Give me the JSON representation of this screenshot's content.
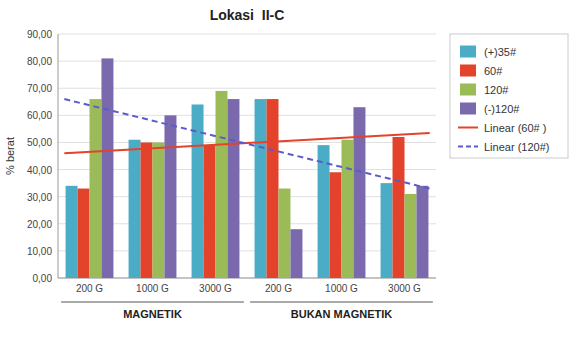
{
  "chart_data": {
    "type": "bar",
    "title": "Lokasi  II-C",
    "ylabel": "% berat",
    "categories": [
      "200 G",
      "1000 G",
      "3000 G",
      "200 G",
      "1000 G",
      "3000 G"
    ],
    "annotations": [
      "MAGNETIK",
      "BUKAN MAGNETIK"
    ],
    "series": [
      {
        "name": "(+)35#",
        "color": "#4BACC6",
        "values": [
          34,
          51,
          64,
          66,
          49,
          35
        ]
      },
      {
        "name": "60#",
        "color": "#E2432A",
        "values": [
          33,
          50,
          49,
          66,
          39,
          52
        ]
      },
      {
        "name": "120#",
        "color": "#9BBB59",
        "values": [
          66,
          50,
          69,
          33,
          51,
          31
        ]
      },
      {
        "name": "(-)120#",
        "color": "#7B69AE",
        "values": [
          81,
          60,
          66,
          18,
          63,
          34
        ]
      },
      {
        "name": "Linear (60# )",
        "type": "line",
        "color": "#E2432A",
        "line_style": "solid",
        "x": [
          -0.4,
          5.4
        ],
        "values": [
          46.0,
          53.5
        ]
      },
      {
        "name": "Linear (120#)",
        "type": "line",
        "color": "#5B5BCC",
        "line_style": "dashed",
        "x": [
          -0.4,
          5.4
        ],
        "values": [
          66.0,
          33.0
        ]
      }
    ],
    "ylim": [
      0,
      90
    ],
    "yticks": [
      {
        "value": 0,
        "label": "0,00"
      },
      {
        "value": 10,
        "label": "10,00"
      },
      {
        "value": 20,
        "label": "20,00"
      },
      {
        "value": 30,
        "label": "30,00"
      },
      {
        "value": 40,
        "label": "40,00"
      },
      {
        "value": 50,
        "label": "50,00"
      },
      {
        "value": 60,
        "label": "60,00"
      },
      {
        "value": 70,
        "label": "70,00"
      },
      {
        "value": 80,
        "label": "80,00"
      },
      {
        "value": 90,
        "label": "90,00"
      }
    ],
    "grid": true,
    "legend": "right"
  }
}
